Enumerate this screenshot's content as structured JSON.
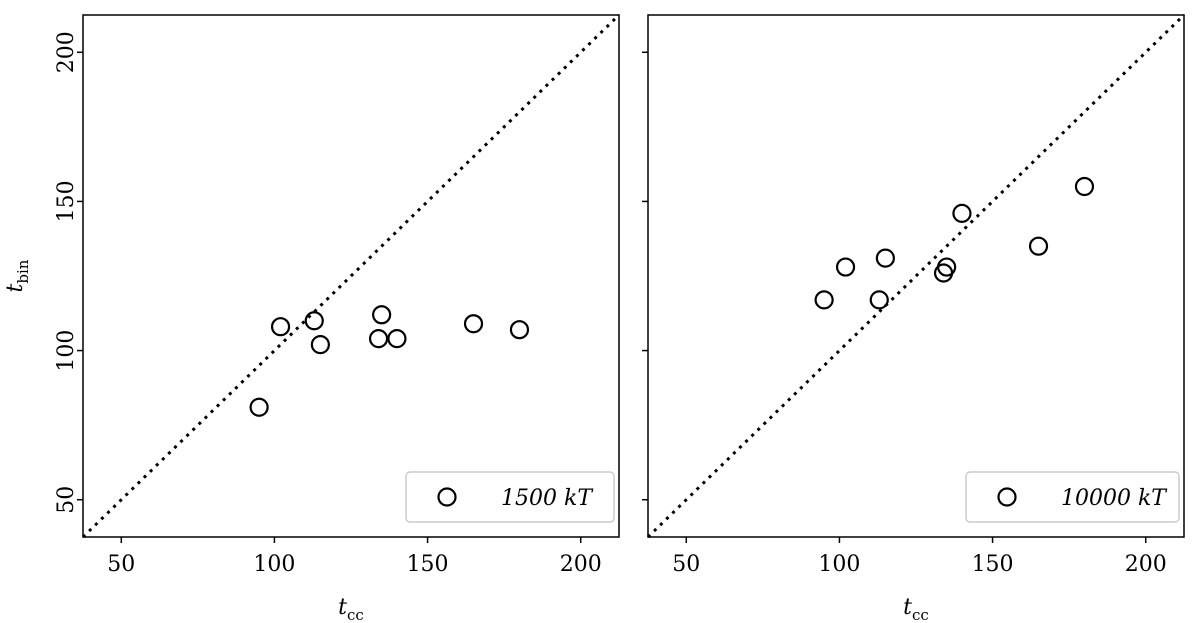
{
  "chart_data": [
    {
      "type": "scatter",
      "xlabel": {
        "text": "t",
        "subscript": "cc"
      },
      "ylabel": {
        "text": "t",
        "subscript": "bin"
      },
      "xlim": [
        37.5,
        212.5
      ],
      "ylim": [
        37.5,
        212.5
      ],
      "xticks": [
        50,
        100,
        150,
        200
      ],
      "yticks": [
        50,
        100,
        150,
        200
      ],
      "legend": "lower right",
      "series": [
        {
          "name": "1500 kT",
          "color": "#000000",
          "x": [
            95,
            102,
            113,
            115,
            134,
            135,
            140,
            165,
            180
          ],
          "values": [
            81,
            108,
            110,
            102,
            104,
            112,
            104,
            109,
            107
          ]
        }
      ]
    },
    {
      "type": "scatter",
      "xlabel": {
        "text": "t",
        "subscript": "cc"
      },
      "xlim": [
        37.5,
        212.5
      ],
      "ylim": [
        37.5,
        212.5
      ],
      "xticks": [
        50,
        100,
        150,
        200
      ],
      "yticks": [
        50,
        100,
        150,
        200
      ],
      "sharey": true,
      "legend": "lower right",
      "series": [
        {
          "name": "10000 kT",
          "color": "#000000",
          "x": [
            95,
            102,
            113,
            115,
            134,
            135,
            140,
            165,
            180
          ],
          "values": [
            117,
            128,
            117,
            131,
            126,
            128,
            146,
            135,
            155
          ]
        }
      ]
    }
  ]
}
